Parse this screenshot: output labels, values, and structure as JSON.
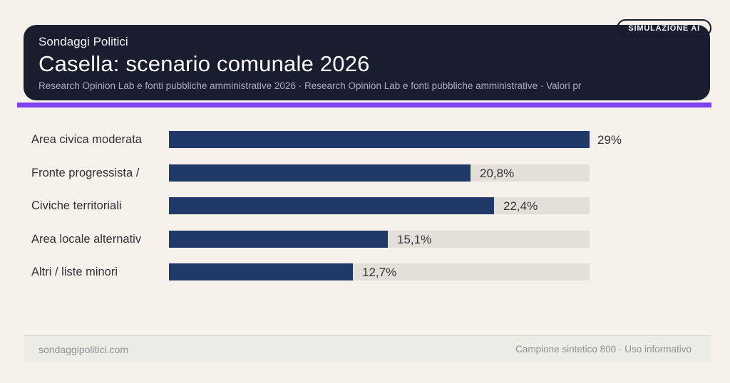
{
  "page": {
    "background_color": "#f6f1ea"
  },
  "header": {
    "kicker": "Sondaggi Politici",
    "title": "Casella: scenario comunale 2026",
    "subtitle": "Research Opinion Lab e fonti pubbliche amministrative 2026 · Research Opinion Lab e fonti pubbliche amministrative · Valori pr",
    "badge": "SIMULAZIONE AI",
    "background_color": "#1a1d2e",
    "accent_color": "#7e3ff2"
  },
  "chart_data": {
    "type": "bar",
    "orientation": "horizontal",
    "title": "Casella: scenario comunale 2026",
    "categories": [
      "Area civica moderata",
      "Fronte progressista /",
      "Civiche territoriali",
      "Area locale alternativ",
      "Altri / liste minori"
    ],
    "values": [
      29,
      20.8,
      22.4,
      15.1,
      12.7
    ],
    "value_labels": [
      "29%",
      "20,8%",
      "22,4%",
      "15,1%",
      "12,7%"
    ],
    "xlim": [
      0,
      29
    ],
    "grid": false,
    "legend": false,
    "bar_color": "#1f3a68",
    "track_color": "#e4e0d9"
  },
  "footer": {
    "left": "sondaggipolitici.com",
    "right": "Campione sintetico 800 · Uso informativo"
  }
}
